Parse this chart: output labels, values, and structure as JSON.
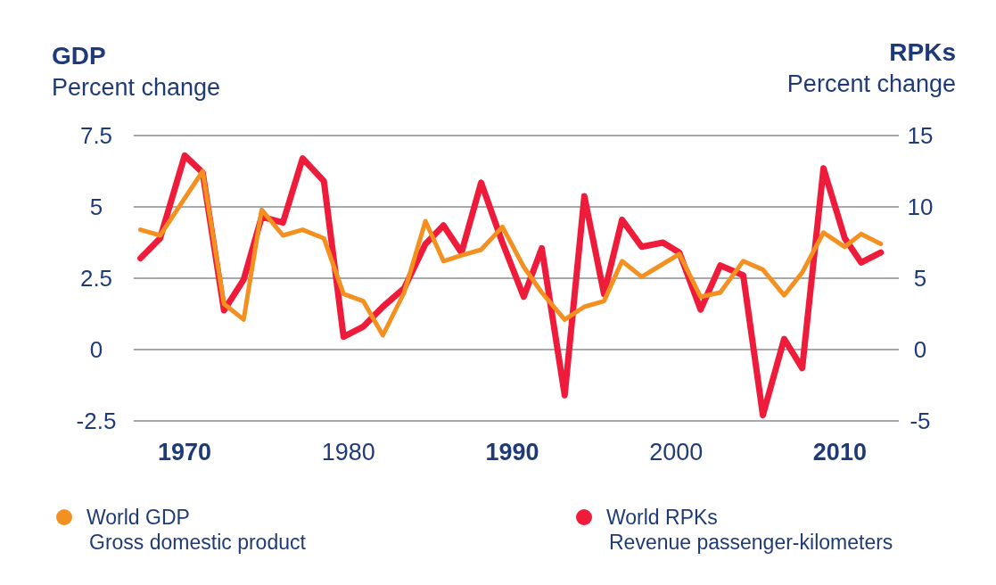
{
  "chart_data": {
    "type": "line",
    "ylabel": "GDP\nPercent change",
    "y2label": "RPKs\nPercent change",
    "x": [
      1967.3,
      1968.5,
      1970,
      1971.1,
      1972.4,
      1973.6,
      1974.7,
      1976.0,
      1977.2,
      1978.5,
      1979.7,
      1980.9,
      1982.1,
      1983.4,
      1984.7,
      1985.8,
      1986.9,
      1988.1,
      1989.4,
      1990.7,
      1991.8,
      1993.2,
      1994.4,
      1995.6,
      1996.7,
      1997.9,
      1999.2,
      2000.2,
      2001.5,
      2002.7,
      2004.1,
      2005.3,
      2006.6,
      2007.7,
      2009.0,
      2010.3,
      2011.3,
      2012.5
    ],
    "series": [
      {
        "name": "World GDP",
        "color": "#f39020",
        "values": [
          4.2,
          4.0,
          5.3,
          6.25,
          1.6,
          1.05,
          4.9,
          4.0,
          4.2,
          3.9,
          1.95,
          1.7,
          0.5,
          2.0,
          4.5,
          3.1,
          3.3,
          3.5,
          4.3,
          2.9,
          2.0,
          1.05,
          1.5,
          1.7,
          3.1,
          2.55,
          3.0,
          3.35,
          1.85,
          2.0,
          3.1,
          2.8,
          1.9,
          2.7,
          4.1,
          3.6,
          4.05,
          3.7
        ]
      },
      {
        "name": "World RPKs",
        "color": "#ee1c3a",
        "axis": "y2",
        "values": [
          6.4,
          7.8,
          13.6,
          12.4,
          2.75,
          4.9,
          9.3,
          8.9,
          13.4,
          11.8,
          0.9,
          1.6,
          3.0,
          4.3,
          7.4,
          8.7,
          6.8,
          11.7,
          7.5,
          3.7,
          7.1,
          -3.2,
          10.75,
          3.9,
          9.1,
          7.2,
          7.5,
          6.8,
          2.8,
          5.9,
          5.2,
          -4.6,
          0.75,
          -1.3,
          12.7,
          7.8,
          6.1,
          6.8
        ]
      }
    ],
    "xlim": [
      1967,
      2013
    ],
    "xticks": [
      1970,
      1980,
      1990,
      2000,
      2010
    ],
    "ylim": [
      -2.5,
      7.5
    ],
    "yticks": [
      -2.5,
      0,
      2.5,
      5,
      7.5
    ],
    "y2lim": [
      -5,
      15
    ],
    "y2ticks": [
      -5,
      0,
      5,
      10,
      15
    ],
    "grid": "y",
    "legend": "bottom",
    "marker": "none",
    "line_style": "solid",
    "annotations": [
      "Gross domestic product",
      "Revenue passenger-kilometers"
    ]
  }
}
